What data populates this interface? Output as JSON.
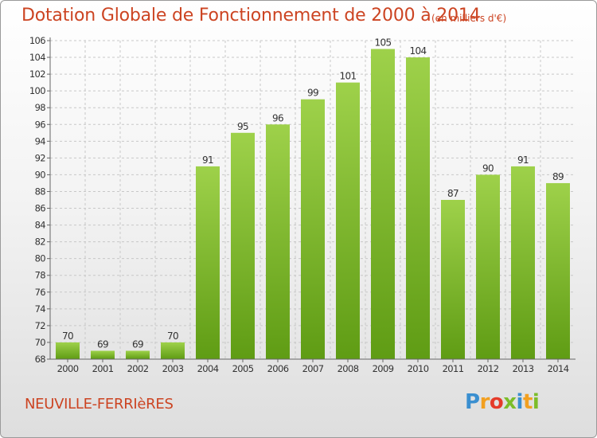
{
  "chart_data": {
    "type": "bar",
    "title": "Dotation Globale de Fonctionnement de 2000 à 2014",
    "unit_note": "(en milliers d'€)",
    "categories": [
      "2000",
      "2001",
      "2002",
      "2003",
      "2004",
      "2005",
      "2006",
      "2007",
      "2008",
      "2009",
      "2010",
      "2011",
      "2012",
      "2013",
      "2014"
    ],
    "values": [
      70,
      69,
      69,
      70,
      91,
      95,
      96,
      99,
      101,
      105,
      104,
      87,
      90,
      91,
      89
    ],
    "ylim": [
      68,
      106
    ],
    "yticks": [
      68,
      70,
      72,
      74,
      76,
      78,
      80,
      82,
      84,
      86,
      88,
      90,
      92,
      94,
      96,
      98,
      100,
      102,
      104,
      106
    ],
    "grid": true,
    "bar_color_light": "#9ed14a",
    "bar_color_dark": "#5f9c14"
  },
  "footer": {
    "commune": "NEUVILLE-FERRIèRES",
    "logo_letters": [
      "P",
      "r",
      "o",
      "x",
      "i",
      "t",
      "i"
    ],
    "logo_colors": [
      "#3a8fd0",
      "#f2a021",
      "#e53b2a",
      "#7cbd2a",
      "#3a8fd0",
      "#f2a021",
      "#7cbd2a"
    ]
  },
  "colors": {
    "title": "#cc4422",
    "axis": "#666666",
    "grid": "#c8c8c8"
  }
}
